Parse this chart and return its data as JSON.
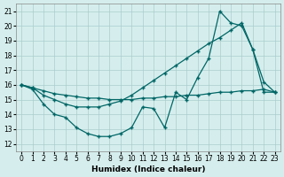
{
  "xlabel": "Humidex (Indice chaleur)",
  "background_color": "#d5eeed",
  "grid_color": "#aacccc",
  "line_color": "#006666",
  "xlim": [
    -0.5,
    23.5
  ],
  "ylim": [
    11.5,
    21.5
  ],
  "yticks": [
    12,
    13,
    14,
    15,
    16,
    17,
    18,
    19,
    20,
    21
  ],
  "xticks": [
    0,
    1,
    2,
    3,
    4,
    5,
    6,
    7,
    8,
    9,
    10,
    11,
    12,
    13,
    14,
    15,
    16,
    17,
    18,
    19,
    20,
    21,
    22,
    23
  ],
  "series1_x": [
    0,
    1,
    2,
    3,
    4,
    5,
    6,
    7,
    8,
    9,
    10,
    11,
    12,
    13,
    14,
    15,
    16,
    17,
    18,
    19,
    20,
    21,
    22,
    23
  ],
  "series1_y": [
    16.0,
    15.7,
    14.7,
    14.0,
    13.8,
    13.1,
    12.7,
    12.5,
    12.5,
    12.7,
    13.1,
    14.5,
    14.4,
    13.1,
    15.5,
    15.0,
    16.5,
    17.8,
    21.0,
    20.2,
    20.0,
    18.4,
    16.2,
    15.5
  ],
  "series2_x": [
    0,
    1,
    2,
    3,
    4,
    5,
    6,
    7,
    8,
    9,
    10,
    11,
    12,
    13,
    14,
    15,
    16,
    17,
    18,
    19,
    20,
    21,
    22,
    23
  ],
  "series2_y": [
    16.0,
    15.8,
    15.6,
    15.4,
    15.3,
    15.2,
    15.1,
    15.1,
    15.0,
    15.0,
    15.0,
    15.1,
    15.1,
    15.2,
    15.2,
    15.3,
    15.3,
    15.4,
    15.5,
    15.5,
    15.6,
    15.6,
    15.7,
    15.5
  ],
  "series3_x": [
    0,
    1,
    2,
    3,
    4,
    5,
    6,
    7,
    8,
    9,
    10,
    11,
    12,
    13,
    14,
    15,
    16,
    17,
    18,
    19,
    20,
    21,
    22,
    23
  ],
  "series3_y": [
    16.0,
    15.8,
    15.3,
    15.0,
    14.7,
    14.5,
    14.5,
    14.5,
    14.7,
    14.9,
    15.3,
    15.8,
    16.3,
    16.8,
    17.3,
    17.8,
    18.3,
    18.8,
    19.2,
    19.7,
    20.2,
    18.4,
    15.5,
    15.5
  ]
}
